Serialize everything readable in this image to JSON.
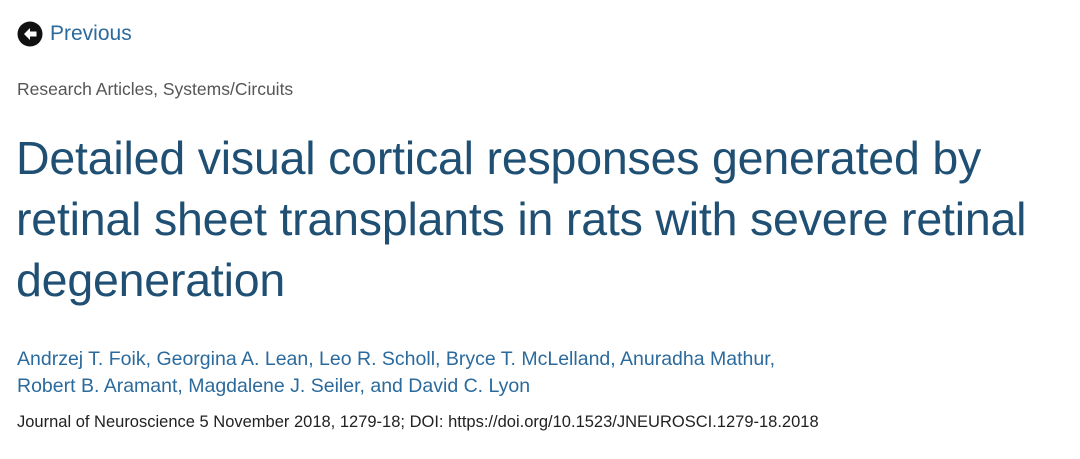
{
  "nav": {
    "previous_label": "Previous",
    "previous_icon": "arrow-circle-left-icon"
  },
  "article": {
    "category": "Research Articles, Systems/Circuits",
    "title_lines": [
      "Detailed visual cortical responses generated by",
      "retinal sheet transplants in rats with severe retinal",
      "degeneration"
    ],
    "author_lines": [
      "Andrzej T. Foik, Georgina A. Lean, Leo R. Scholl, Bryce T. McLelland, Anuradha Mathur,",
      "Robert B. Aramant, Magdalene J. Seiler, and David C. Lyon"
    ],
    "citation": "Journal of Neuroscience 5 November 2018, 1279-18; DOI: https://doi.org/10.1523/JNEUROSCI.1279-18.2018"
  },
  "colors": {
    "title": "#1f4f73",
    "link": "#2b6a9c",
    "category": "#555555",
    "citation": "#222222",
    "icon": "#111111"
  }
}
